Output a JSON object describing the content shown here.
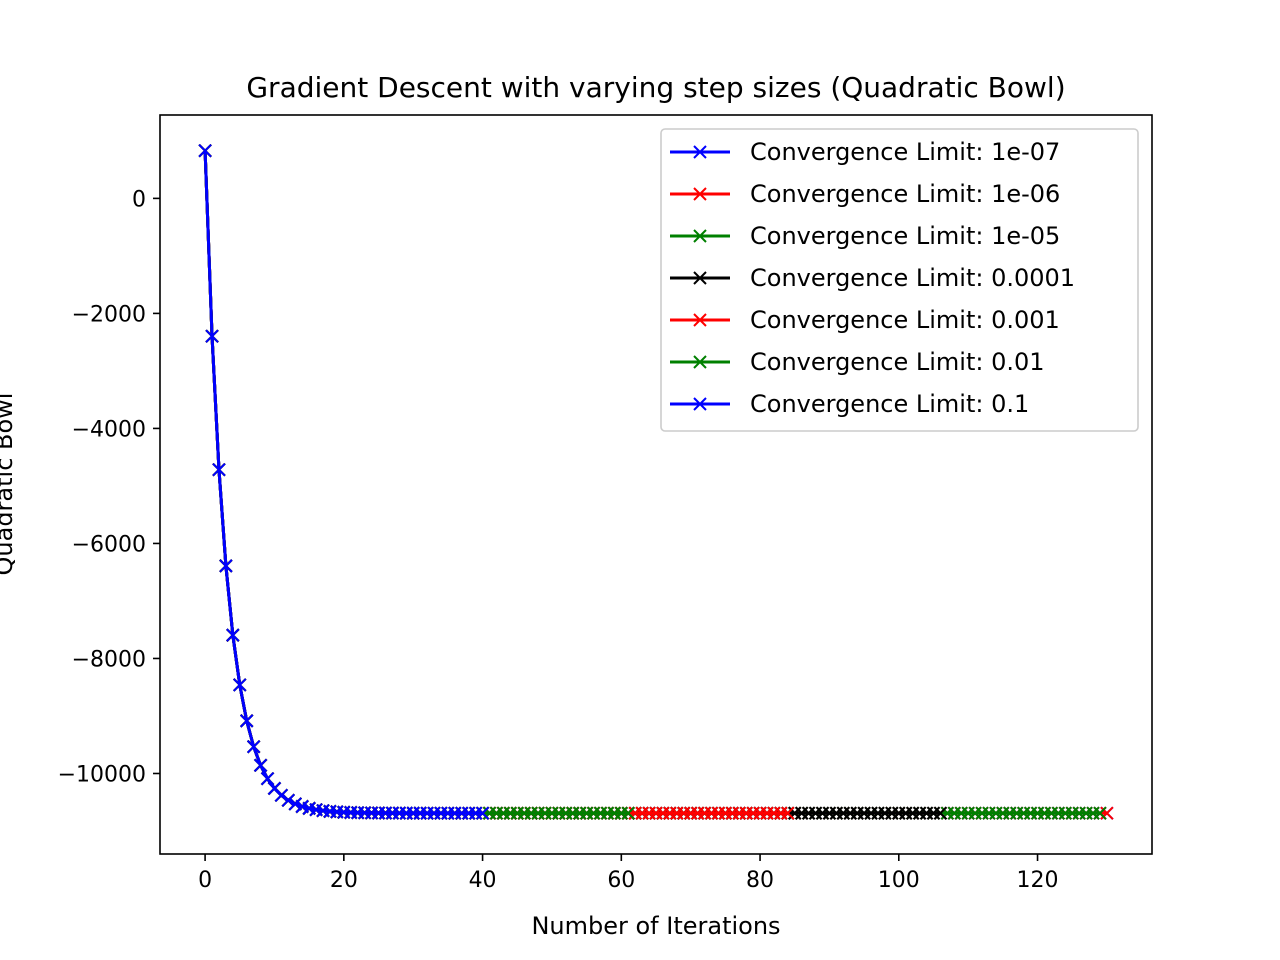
{
  "chart_data": {
    "type": "line",
    "title": "Gradient Descent with varying step sizes (Quadratic Bowl)",
    "xlabel": "Number of Iterations",
    "ylabel": "Quadratic Bowl",
    "xlim": [
      -6.5,
      136.5
    ],
    "ylim": [
      -11400,
      1450
    ],
    "xticks": [
      0,
      20,
      40,
      60,
      80,
      100,
      120
    ],
    "yticks": [
      0,
      -2000,
      -4000,
      -6000,
      -8000,
      -10000
    ],
    "xtick_labels": [
      "0",
      "20",
      "40",
      "60",
      "80",
      "100",
      "120"
    ],
    "ytick_labels": [
      "0",
      "−2000",
      "−4000",
      "−6000",
      "−8000",
      "−10000"
    ],
    "grid": false,
    "legend_position": "top-right",
    "marker": "x",
    "curve": {
      "f0": 830,
      "f_min": -10690,
      "decay_per_iteration": 0.72
    },
    "series": [
      {
        "name": "Convergence Limit: 1e-07",
        "color": "#0000ff",
        "last_iteration": 130
      },
      {
        "name": "Convergence Limit: 1e-06",
        "color": "#ff0000",
        "last_iteration": 130
      },
      {
        "name": "Convergence Limit: 1e-05",
        "color": "#008000",
        "last_iteration": 129
      },
      {
        "name": "Convergence Limit: 0.0001",
        "color": "#000000",
        "last_iteration": 106
      },
      {
        "name": "Convergence Limit: 0.001",
        "color": "#ff0000",
        "last_iteration": 84
      },
      {
        "name": "Convergence Limit: 0.01",
        "color": "#008000",
        "last_iteration": 61
      },
      {
        "name": "Convergence Limit: 0.1",
        "color": "#0000ff",
        "last_iteration": 40
      }
    ]
  }
}
